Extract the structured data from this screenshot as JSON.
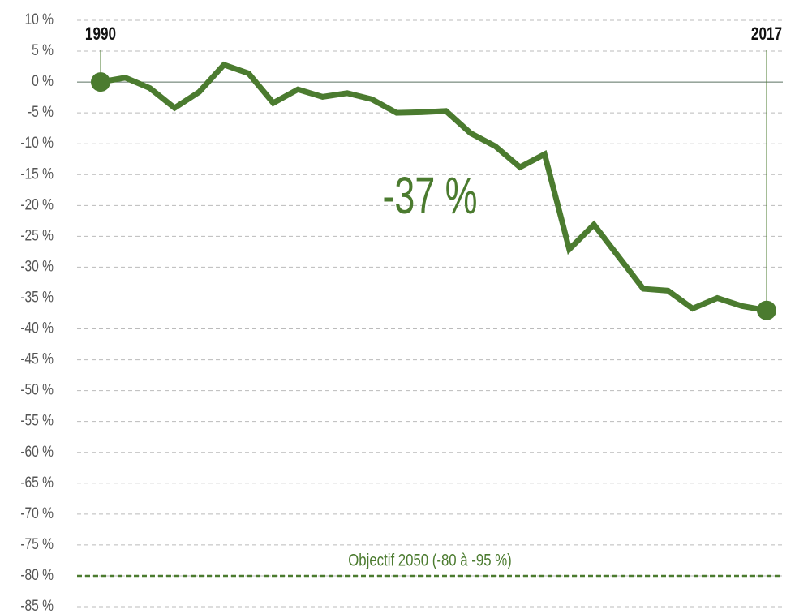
{
  "chart_data": {
    "type": "line",
    "x": [
      1990,
      1991,
      1992,
      1993,
      1994,
      1995,
      1996,
      1997,
      1998,
      1999,
      2000,
      2001,
      2002,
      2003,
      2004,
      2005,
      2006,
      2007,
      2008,
      2009,
      2010,
      2011,
      2012,
      2013,
      2014,
      2015,
      2016,
      2017
    ],
    "series": [
      {
        "color": "#4b7b2f",
        "values": [
          0,
          0.7,
          -1,
          -4.2,
          -1.6,
          2.8,
          1.4,
          -3.4,
          -1.2,
          -2.4,
          -1.8,
          -2.8,
          -5,
          -4.9,
          -4.7,
          -8.3,
          -10.4,
          -13.8,
          -11.7,
          -27.1,
          -23.1,
          -28.3,
          -33.5,
          -33.8,
          -36.7,
          -35,
          -36.3,
          -37
        ]
      }
    ],
    "xlim": [
      1990,
      2017
    ],
    "xticks": [
      1990,
      2017
    ],
    "ylim": [
      10,
      -85
    ],
    "yticks": [
      {
        "value": 10,
        "label": "10 %"
      },
      {
        "value": 5,
        "label": "5 %"
      },
      {
        "value": 0,
        "label": "0 %"
      },
      {
        "value": -5,
        "label": "-5 %"
      },
      {
        "value": -10,
        "label": "-10 %"
      },
      {
        "value": -15,
        "label": "-15 %"
      },
      {
        "value": -20,
        "label": "-20 %"
      },
      {
        "value": -25,
        "label": "-25 %"
      },
      {
        "value": -30,
        "label": "-30 %"
      },
      {
        "value": -35,
        "label": "-35 %"
      },
      {
        "value": -40,
        "label": "-40 %"
      },
      {
        "value": -45,
        "label": "-45 %"
      },
      {
        "value": -50,
        "label": "-50 %"
      },
      {
        "value": -55,
        "label": "-55 %"
      },
      {
        "value": -60,
        "label": "-60 %"
      },
      {
        "value": -65,
        "label": "-65 %"
      },
      {
        "value": -70,
        "label": "-70 %"
      },
      {
        "value": -75,
        "label": "-75 %"
      },
      {
        "value": -80,
        "label": "-80 %"
      },
      {
        "value": -85,
        "label": "-85 %"
      }
    ],
    "grid": true,
    "annotation": "-37 %",
    "target": {
      "label": "Objectif 2050 (-80 à -95 %)",
      "value": -80,
      "color": "#4b7b2f"
    }
  }
}
